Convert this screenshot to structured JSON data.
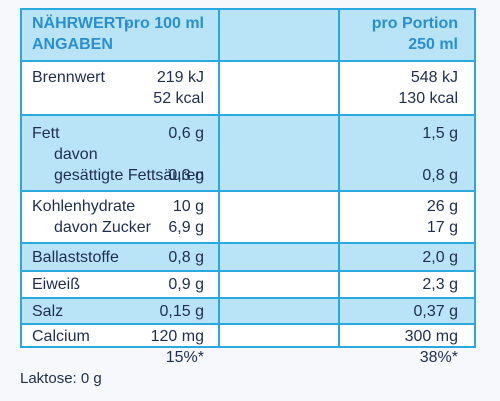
{
  "header": {
    "col1_line1": "NÄHRWERT-",
    "col1_line2": "ANGABEN",
    "col2": "pro 100 ml",
    "col3_line1": "pro Portion",
    "col3_line2": "250 ml"
  },
  "rows": [
    {
      "label": "Brennwert",
      "v100_1": "219 kJ",
      "v100_2": "52 kcal",
      "vpor_1": "548 kJ",
      "vpor_2": "130 kcal"
    },
    {
      "label": "Fett",
      "sub1": "davon",
      "sub2": "gesättigte Fettsäuren",
      "v100_1": "0,6 g",
      "v100_2": "0,3 g",
      "vpor_1": "1,5 g",
      "vpor_2": "0,8 g"
    },
    {
      "label": "Kohlenhydrate",
      "sub1": "davon Zucker",
      "v100_1": "10 g",
      "v100_2": "6,9 g",
      "vpor_1": "26 g",
      "vpor_2": "17 g"
    },
    {
      "label": "Ballaststoffe",
      "v100": "0,8 g",
      "vpor": "2,0 g"
    },
    {
      "label": "Eiweiß",
      "v100": "0,9 g",
      "vpor": "2,3 g"
    },
    {
      "label": "Salz",
      "v100": "0,15 g",
      "vpor": "0,37 g"
    },
    {
      "label": "Calcium",
      "v100_1": "120 mg",
      "v100_2": "15%*",
      "vpor_1": "300 mg",
      "vpor_2": "38%*"
    }
  ],
  "footer": {
    "lactose": "Laktose: 0 g"
  },
  "colors": {
    "border": "#2aa9dd",
    "row_fill": "#b9e3f7",
    "header_text": "#2a8fd0",
    "body_text": "#1f2e4d"
  }
}
